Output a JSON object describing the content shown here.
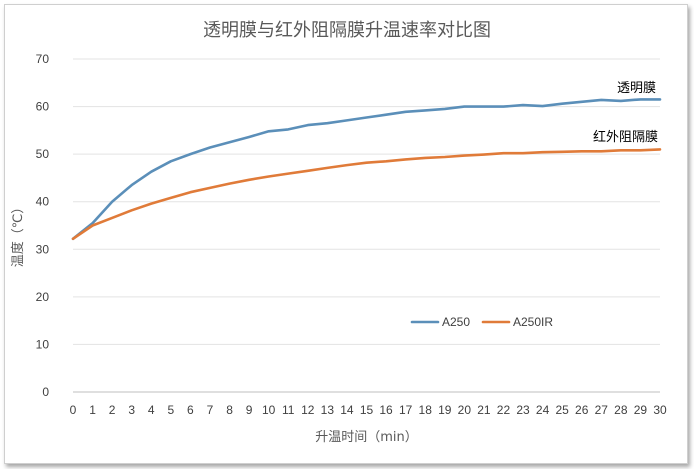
{
  "chart_data": {
    "type": "line",
    "title": "透明膜与红外阻隔膜升温速率对比图",
    "xlabel": "升温时间（min）",
    "ylabel": "温度（℃）",
    "ylim": [
      0,
      70
    ],
    "yticks": [
      0,
      10,
      20,
      30,
      40,
      50,
      60,
      70
    ],
    "x": [
      0,
      1,
      2,
      3,
      4,
      5,
      6,
      7,
      8,
      9,
      10,
      11,
      12,
      13,
      14,
      15,
      16,
      17,
      18,
      19,
      20,
      21,
      22,
      23,
      24,
      25,
      26,
      27,
      28,
      29,
      30
    ],
    "grid": true,
    "legend_position": "bottom-center-inside",
    "series": [
      {
        "name": "A250",
        "color": "#5b8fb9",
        "values": [
          32.2,
          35.5,
          40.0,
          43.5,
          46.3,
          48.5,
          50.0,
          51.4,
          52.5,
          53.6,
          54.8,
          55.2,
          56.1,
          56.5,
          57.1,
          57.7,
          58.3,
          58.9,
          59.2,
          59.5,
          60.0,
          60.0,
          60.0,
          60.3,
          60.1,
          60.6,
          61.0,
          61.4,
          61.2,
          61.5,
          61.5
        ]
      },
      {
        "name": "A250IR",
        "color": "#e07b39",
        "values": [
          32.2,
          35.0,
          36.6,
          38.2,
          39.6,
          40.8,
          42.0,
          42.9,
          43.8,
          44.6,
          45.3,
          45.9,
          46.5,
          47.1,
          47.7,
          48.2,
          48.5,
          48.9,
          49.2,
          49.4,
          49.7,
          49.9,
          50.2,
          50.2,
          50.4,
          50.5,
          50.6,
          50.6,
          50.8,
          50.8,
          51.0
        ]
      }
    ],
    "annotations": [
      {
        "text": "透明膜",
        "series": "A250"
      },
      {
        "text": "红外阻隔膜",
        "series": "A250IR"
      }
    ]
  }
}
